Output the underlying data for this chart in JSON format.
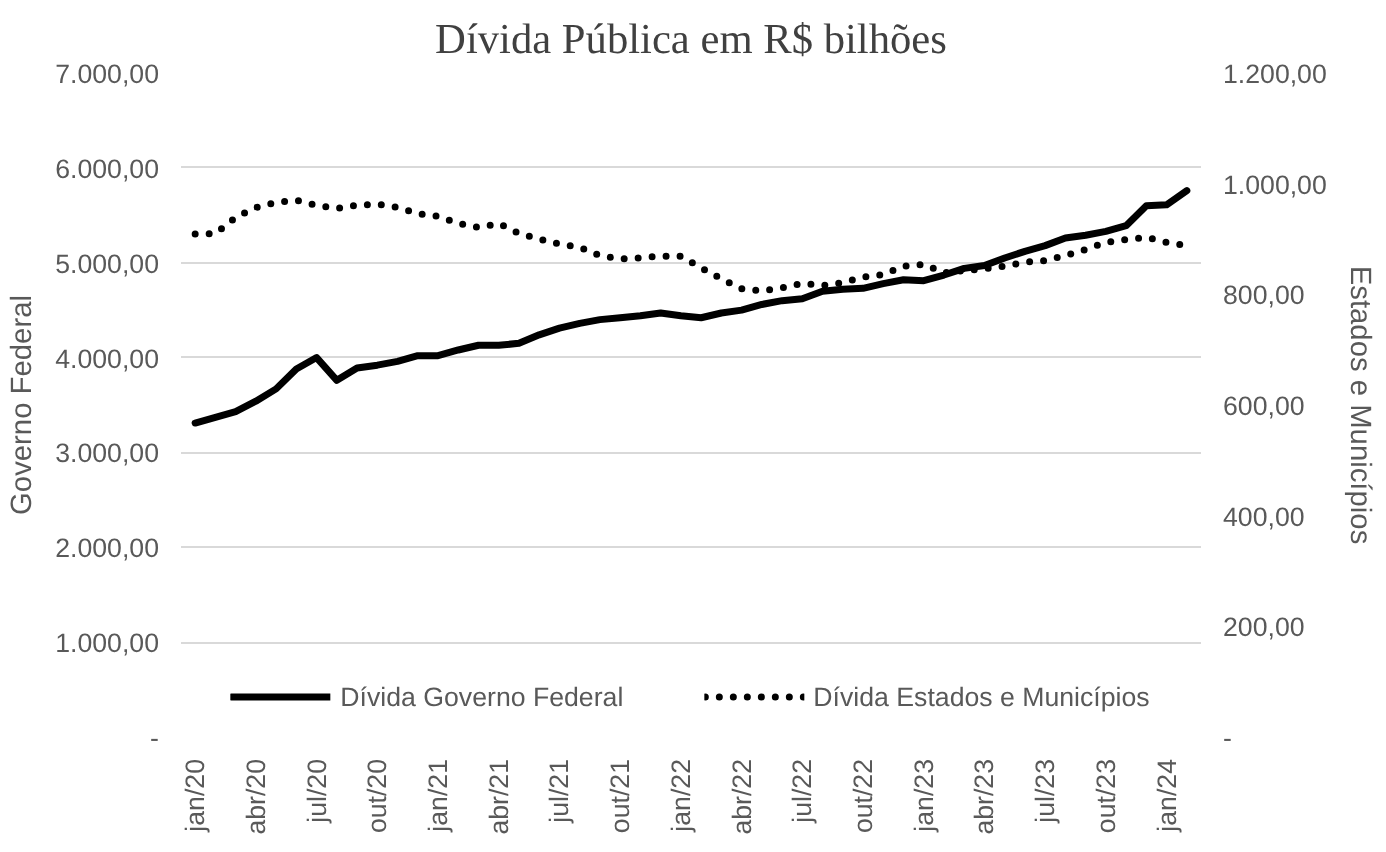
{
  "chart_data": {
    "type": "line",
    "title": "Dívida Pública em R$ bilhões",
    "ylabel": "Governo Federal",
    "y2label": "Estados e Municípios",
    "categories": [
      "jan/20",
      null,
      null,
      "abr/20",
      null,
      null,
      "jul/20",
      null,
      null,
      "out/20",
      null,
      null,
      "jan/21",
      null,
      null,
      "abr/21",
      null,
      null,
      "jul/21",
      null,
      null,
      "out/21",
      null,
      null,
      "jan/22",
      null,
      null,
      "abr/22",
      null,
      null,
      "jul/22",
      null,
      null,
      "out/22",
      null,
      null,
      "jan/23",
      null,
      null,
      "abr/23",
      null,
      null,
      "jul/23",
      null,
      null,
      "out/23",
      null,
      null,
      "jan/24",
      null
    ],
    "series": [
      {
        "name": "Dívida Governo Federal",
        "color": "#000000",
        "line_style": "solid",
        "values": [
          3310,
          3370,
          3430,
          3540,
          3670,
          3880,
          4000,
          3760,
          3890,
          3920,
          3960,
          4020,
          4020,
          4080,
          4130,
          4130,
          4150,
          4240,
          4310,
          4360,
          4400,
          4420,
          4440,
          4470,
          4440,
          4420,
          4470,
          4500,
          4560,
          4600,
          4620,
          4700,
          4720,
          4730,
          4780,
          4820,
          4810,
          4870,
          4940,
          4970,
          5050,
          5120,
          5180,
          5260,
          5290,
          5330,
          5390,
          5600,
          5610,
          5760
        ]
      },
      {
        "name": "Dívida Estados e Municípios",
        "color": "#000000",
        "line_style": "dotted",
        "axis": "y2",
        "values": [
          909,
          910,
          939,
          957,
          966,
          970,
          961,
          955,
          961,
          963,
          957,
          946,
          941,
          928,
          921,
          928,
          910,
          900,
          891,
          885,
          870,
          864,
          866,
          869,
          869,
          848,
          828,
          810,
          806,
          812,
          820,
          816,
          821,
          831,
          836,
          851,
          854,
          839,
          843,
          846,
          851,
          858,
          861,
          870,
          881,
          894,
          899,
          903,
          894,
          888
        ]
      }
    ],
    "ylim": [
      0,
      7000
    ],
    "yticks": [
      {
        "value": 0,
        "label": "-"
      },
      {
        "value": 1000,
        "label": "1.000,00"
      },
      {
        "value": 2000,
        "label": "2.000,00"
      },
      {
        "value": 3000,
        "label": "3.000,00"
      },
      {
        "value": 4000,
        "label": "4.000,00"
      },
      {
        "value": 5000,
        "label": "5.000,00"
      },
      {
        "value": 6000,
        "label": "6.000,00"
      },
      {
        "value": 7000,
        "label": "7.000,00"
      }
    ],
    "y2lim": [
      0,
      1200
    ],
    "y2ticks": [
      {
        "value": 0,
        "label": "-"
      },
      {
        "value": 200,
        "label": "200,00"
      },
      {
        "value": 400,
        "label": "400,00"
      },
      {
        "value": 600,
        "label": "600,00"
      },
      {
        "value": 800,
        "label": "800,00"
      },
      {
        "value": 1000,
        "label": "1.000,00"
      },
      {
        "value": 1200,
        "label": "1.200,00"
      }
    ],
    "grid": "y",
    "legend": "bottom",
    "marker": "none"
  }
}
